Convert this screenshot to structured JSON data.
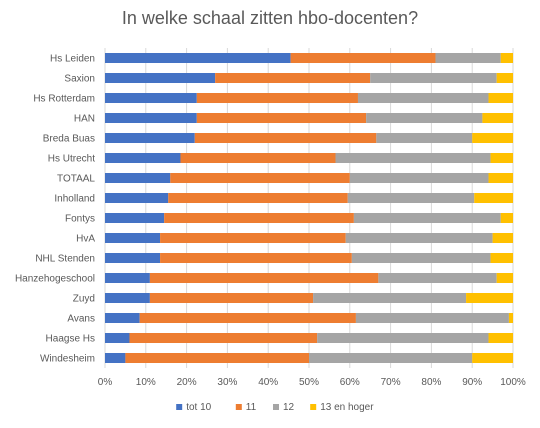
{
  "chart_data": {
    "type": "bar",
    "orientation": "horizontal",
    "stacked": "percent",
    "title": "In welke schaal zitten hbo-docenten?",
    "categories": [
      "Hs Leiden",
      "Saxion",
      "Hs Rotterdam",
      "HAN",
      "Breda Buas",
      "Hs Utrecht",
      "TOTAAL",
      "Inholland",
      "Fontys",
      "HvA",
      "NHL Stenden",
      "Hanzehogeschool",
      "Zuyd",
      "Avans",
      "Haagse Hs",
      "Windesheim"
    ],
    "series": [
      {
        "name": "tot 10",
        "color": "#4472C4",
        "values": [
          45.5,
          27,
          22.5,
          22.5,
          22,
          18.5,
          16,
          15.5,
          14.5,
          13.5,
          13.5,
          11,
          11,
          8.5,
          6,
          5
        ]
      },
      {
        "name": "11",
        "color": "#ED7D31",
        "values": [
          35.5,
          38,
          39.5,
          41.5,
          44.5,
          38,
          44,
          44,
          46.5,
          45.5,
          47,
          56,
          40,
          53,
          46,
          45
        ]
      },
      {
        "name": "12",
        "color": "#A5A5A5",
        "values": [
          16,
          31,
          32,
          28.5,
          23.5,
          38,
          34,
          31,
          36,
          36,
          34,
          29,
          37.5,
          37.5,
          42,
          40
        ]
      },
      {
        "name": "13 en hoger",
        "color": "#FFC000",
        "values": [
          3,
          4,
          6,
          7.5,
          10,
          5.5,
          6,
          9.5,
          3,
          5,
          5.5,
          4,
          11.5,
          1,
          6,
          10
        ]
      }
    ],
    "x_ticks": [
      "0%",
      "10%",
      "20%",
      "30%",
      "40%",
      "50%",
      "60%",
      "70%",
      "80%",
      "90%",
      "100%"
    ],
    "xlim": [
      0,
      100
    ],
    "grid": true,
    "legend_position": "bottom"
  }
}
